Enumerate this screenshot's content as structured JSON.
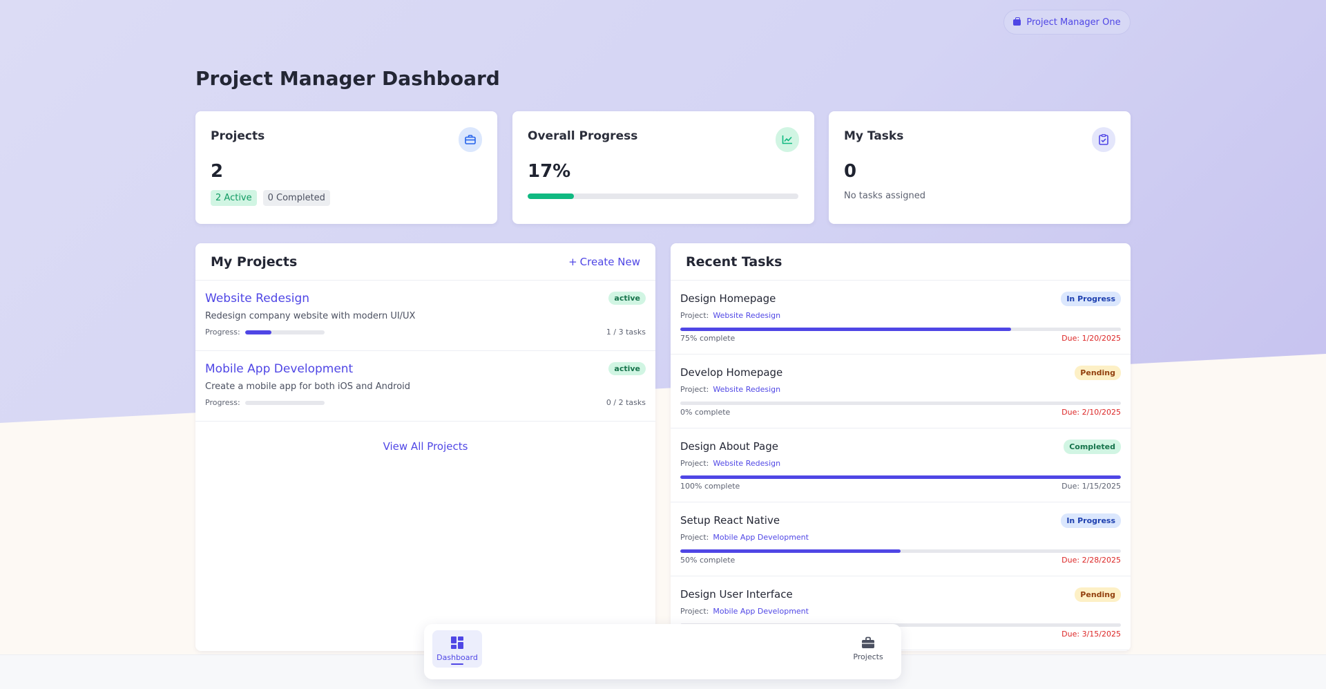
{
  "header": {
    "user_label": "Project Manager One",
    "page_title": "Project Manager Dashboard"
  },
  "stats": {
    "projects": {
      "title": "Projects",
      "value": "2",
      "active_tag": "2 Active",
      "completed_tag": "0 Completed",
      "icon": "briefcase-icon"
    },
    "progress": {
      "title": "Overall Progress",
      "value": "17%",
      "fraction": 0.17,
      "icon": "line-chart-icon"
    },
    "tasks": {
      "title": "My Tasks",
      "value": "0",
      "subtext": "No tasks assigned",
      "icon": "clipboard-check-icon"
    }
  },
  "my_projects": {
    "title": "My Projects",
    "create_label": "Create New",
    "view_all_label": "View All Projects",
    "progress_label": "Progress:",
    "items": [
      {
        "name": "Website Redesign",
        "description": "Redesign company website with modern UI/UX",
        "status": "active",
        "progress": 0.33,
        "tasks": "1 / 3 tasks"
      },
      {
        "name": "Mobile App Development",
        "description": "Create a mobile app for both iOS and Android",
        "status": "active",
        "progress": 0,
        "tasks": "0 / 2 tasks"
      }
    ]
  },
  "recent_tasks": {
    "title": "Recent Tasks",
    "project_prefix": "Project:",
    "items": [
      {
        "name": "Design Homepage",
        "project": "Website Redesign",
        "status": "In Progress",
        "progress": 0.75,
        "progress_text": "75% complete",
        "due": "Due: 1/20/2025"
      },
      {
        "name": "Develop Homepage",
        "project": "Website Redesign",
        "status": "Pending",
        "progress": 0,
        "progress_text": "0% complete",
        "due": "Due: 2/10/2025"
      },
      {
        "name": "Design About Page",
        "project": "Website Redesign",
        "status": "Completed",
        "progress": 1.0,
        "progress_text": "100% complete",
        "due": "Due: 1/15/2025"
      },
      {
        "name": "Setup React Native",
        "project": "Mobile App Development",
        "status": "In Progress",
        "progress": 0.5,
        "progress_text": "50% complete",
        "due": "Due: 2/28/2025"
      },
      {
        "name": "Design User Interface",
        "project": "Mobile App Development",
        "status": "Pending",
        "progress": 0,
        "progress_text": "",
        "due": "Due: 3/15/2025"
      }
    ]
  },
  "bottom_nav": {
    "dashboard_label": "Dashboard",
    "projects_label": "Projects"
  },
  "colors": {
    "accent": "#4f46e5",
    "success": "#10b981",
    "danger": "#dc2626"
  }
}
